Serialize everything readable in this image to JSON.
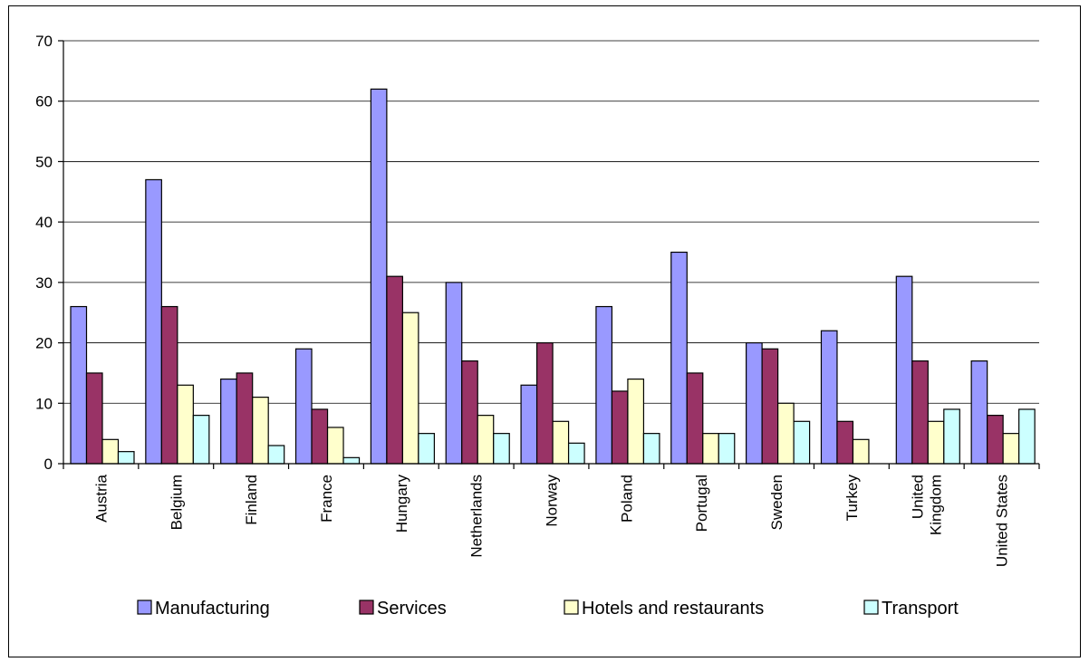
{
  "chart_data": {
    "type": "bar",
    "categories": [
      [
        "Austria"
      ],
      [
        "Belgium"
      ],
      [
        "Finland"
      ],
      [
        "France"
      ],
      [
        "Hungary"
      ],
      [
        "Netherlands"
      ],
      [
        "Norway"
      ],
      [
        "Poland"
      ],
      [
        "Portugal"
      ],
      [
        "Sweden"
      ],
      [
        "Turkey"
      ],
      [
        "United",
        "Kingdom"
      ],
      [
        "United States"
      ]
    ],
    "series": [
      {
        "name": "Manufacturing",
        "color": "#9999ff",
        "values": [
          26,
          47,
          14,
          19,
          62,
          30,
          13,
          26,
          35,
          20,
          22,
          31,
          17
        ]
      },
      {
        "name": "Services",
        "color": "#993366",
        "values": [
          15,
          26,
          15,
          9,
          31,
          17,
          20,
          12,
          15,
          19,
          7,
          17,
          8
        ]
      },
      {
        "name": "Hotels and restaurants",
        "color": "#ffffcc",
        "values": [
          4,
          13,
          11,
          6,
          25,
          8,
          7,
          14,
          5,
          10,
          4,
          7,
          5
        ]
      },
      {
        "name": "Transport",
        "color": "#ccffff",
        "values": [
          2,
          8,
          3,
          1,
          5,
          5,
          3.4,
          5,
          5,
          7,
          0,
          9,
          9
        ]
      }
    ],
    "ylim": [
      0,
      70
    ],
    "yticks": [
      0,
      10,
      20,
      30,
      40,
      50,
      60,
      70
    ],
    "grid": true,
    "legend_position": "bottom"
  }
}
